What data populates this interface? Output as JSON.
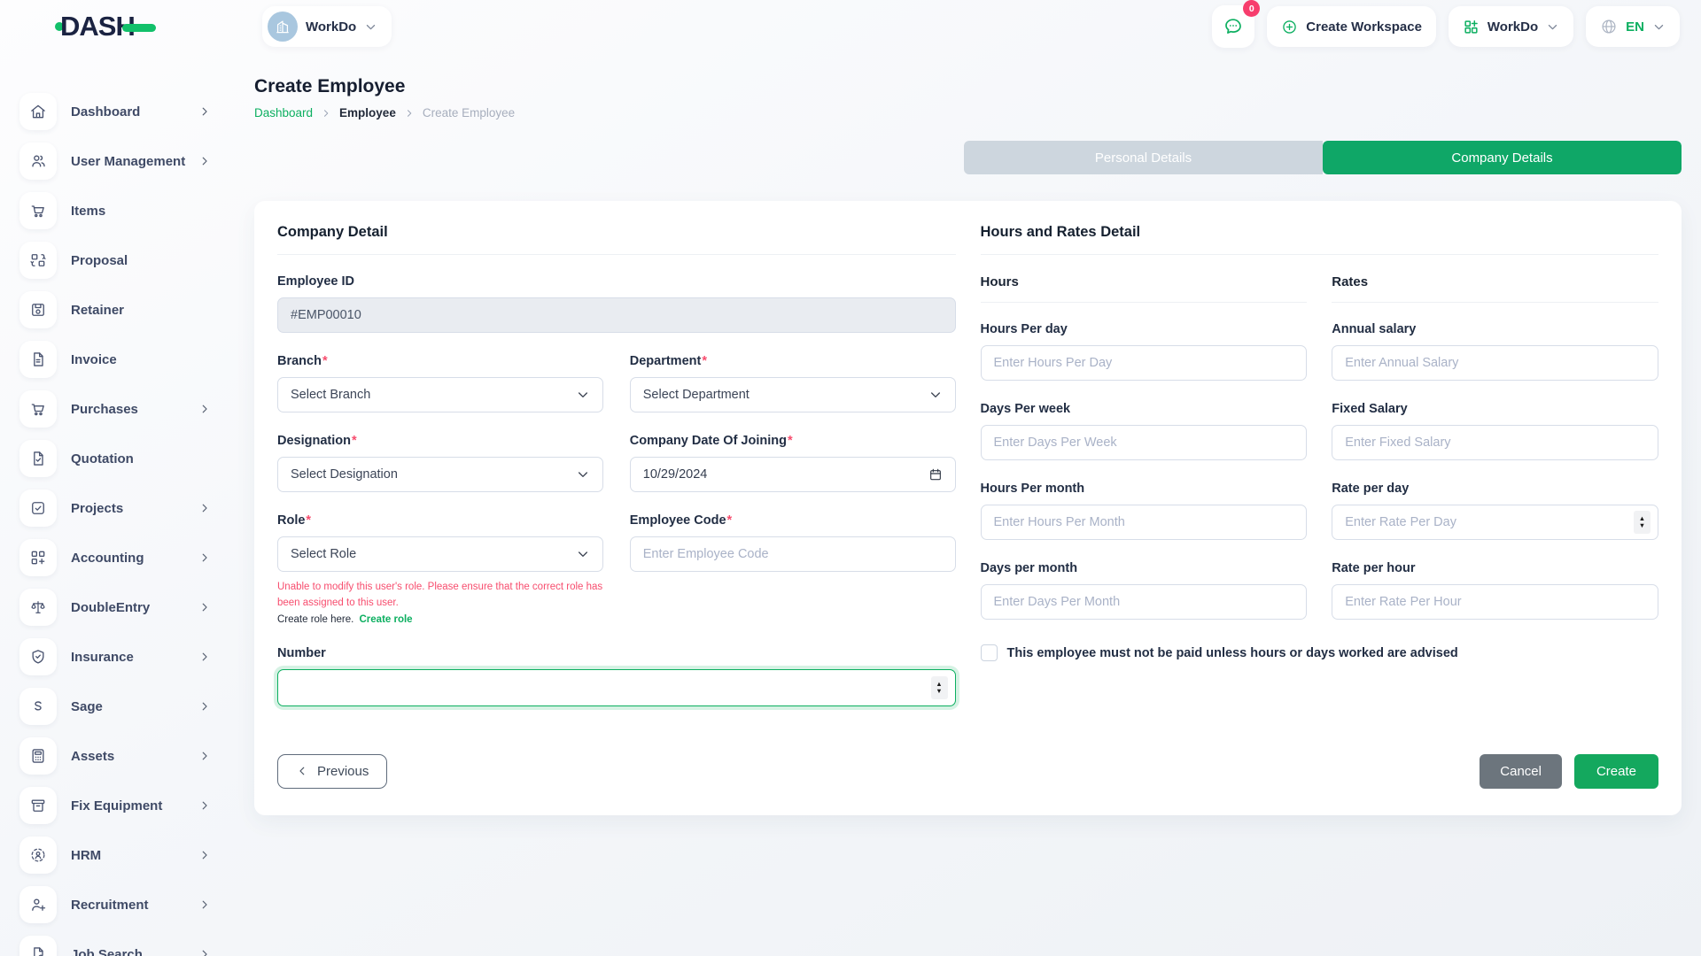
{
  "topbar": {
    "logo_text": "DASH",
    "workspace_selector": {
      "label": "WorkDo",
      "icon": "building-icon",
      "chevron": "chevron-down-icon"
    },
    "messages": {
      "icon": "chat-icon",
      "badge_count": "0"
    },
    "create_workspace": {
      "label": "Create Workspace",
      "icon": "plus-circle-icon"
    },
    "workdo_menu": {
      "label": "WorkDo",
      "icon": "grid-plus-icon",
      "chevron": "chevron-down-icon"
    },
    "language": {
      "label": "EN",
      "icon": "globe-icon",
      "chevron": "chevron-down-icon"
    }
  },
  "sidebar": {
    "items": [
      {
        "label": "Dashboard",
        "icon": "home-icon",
        "has_submenu": true
      },
      {
        "label": "User Management",
        "icon": "users-icon",
        "has_submenu": true
      },
      {
        "label": "Items",
        "icon": "cart-icon",
        "has_submenu": false
      },
      {
        "label": "Proposal",
        "icon": "proposal-icon",
        "has_submenu": false
      },
      {
        "label": "Retainer",
        "icon": "save-icon",
        "has_submenu": false
      },
      {
        "label": "Invoice",
        "icon": "invoice-icon",
        "has_submenu": false
      },
      {
        "label": "Purchases",
        "icon": "cart-icon",
        "has_submenu": true
      },
      {
        "label": "Quotation",
        "icon": "quotation-icon",
        "has_submenu": false
      },
      {
        "label": "Projects",
        "icon": "projects-icon",
        "has_submenu": true
      },
      {
        "label": "Accounting",
        "icon": "accounting-icon",
        "has_submenu": true
      },
      {
        "label": "DoubleEntry",
        "icon": "scales-icon",
        "has_submenu": true
      },
      {
        "label": "Insurance",
        "icon": "shield-icon",
        "has_submenu": true
      },
      {
        "label": "Sage",
        "icon": "letter-s-icon",
        "has_submenu": true
      },
      {
        "label": "Assets",
        "icon": "calculator-icon",
        "has_submenu": true
      },
      {
        "label": "Fix Equipment",
        "icon": "archive-icon",
        "has_submenu": true
      },
      {
        "label": "HRM",
        "icon": "hrm-icon",
        "has_submenu": true
      },
      {
        "label": "Recruitment",
        "icon": "person-plus-icon",
        "has_submenu": true
      },
      {
        "label": "Job Search",
        "icon": "file-search-icon",
        "has_submenu": true
      }
    ]
  },
  "page": {
    "title": "Create Employee",
    "breadcrumb": {
      "root": "Dashboard",
      "section": "Employee",
      "current": "Create Employee"
    }
  },
  "tabs": {
    "personal": {
      "label": "Personal Details",
      "active": false
    },
    "company": {
      "label": "Company Details",
      "active": true
    }
  },
  "company_detail": {
    "heading": "Company Detail",
    "employee_id": {
      "label": "Employee ID",
      "value": "#EMP00010",
      "readonly": true
    },
    "branch": {
      "label": "Branch",
      "required": true,
      "value": "Select Branch"
    },
    "department": {
      "label": "Department",
      "required": true,
      "value": "Select Department"
    },
    "designation": {
      "label": "Designation",
      "required": true,
      "value": "Select Designation"
    },
    "date_of_joining": {
      "label": "Company Date Of Joining",
      "required": true,
      "value": "10/29/2024"
    },
    "role": {
      "label": "Role",
      "required": true,
      "value": "Select Role",
      "warning": "Unable to modify this user's role. Please ensure that the correct role has been assigned to this user.",
      "helper_text": "Create role here.",
      "helper_link": "Create role"
    },
    "employee_code": {
      "label": "Employee Code",
      "required": true,
      "placeholder": "Enter Employee Code",
      "value": ""
    },
    "number": {
      "label": "Number",
      "value": "",
      "focused": true
    }
  },
  "hours_rates": {
    "heading": "Hours and Rates Detail",
    "hours": {
      "heading": "Hours",
      "fields": [
        {
          "label": "Hours Per day",
          "placeholder": "Enter Hours Per Day"
        },
        {
          "label": "Days Per week",
          "placeholder": "Enter Days Per Week"
        },
        {
          "label": "Hours Per month",
          "placeholder": "Enter Hours Per Month"
        },
        {
          "label": "Days per month",
          "placeholder": "Enter Days Per Month"
        }
      ]
    },
    "rates": {
      "heading": "Rates",
      "fields": [
        {
          "label": "Annual salary",
          "placeholder": "Enter Annual Salary"
        },
        {
          "label": "Fixed Salary",
          "placeholder": "Enter Fixed Salary"
        },
        {
          "label": "Rate per day",
          "placeholder": "Enter Rate Per Day",
          "spinner": true
        },
        {
          "label": "Rate per hour",
          "placeholder": "Enter Rate Per Hour"
        }
      ]
    },
    "checkbox": {
      "label": "This employee must not be paid unless hours or days worked are advised",
      "checked": false
    }
  },
  "footer": {
    "previous": "Previous",
    "cancel": "Cancel",
    "create": "Create"
  },
  "misc": {
    "required_marker": "*"
  },
  "colors": {
    "primary_green": "#0caf60",
    "logo_green": "#12c06a",
    "danger_pink": "#f74d6e",
    "badge_pink": "#f73d6d",
    "inactive_tab": "#cdd6de",
    "cancel_gray": "#6c757d",
    "text_dark": "#1c2437",
    "placeholder": "#a9b2c7",
    "input_border": "#d7dde8",
    "readonly_bg": "#e9ecf1"
  }
}
